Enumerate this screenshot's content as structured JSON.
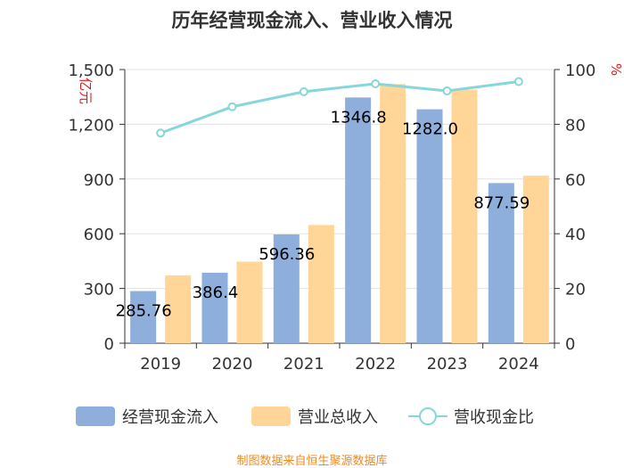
{
  "chart_data": {
    "type": "bar",
    "title": "历年经营现金流入、营业收入情况",
    "categories": [
      "2019",
      "2020",
      "2021",
      "2022",
      "2023",
      "2024"
    ],
    "series": [
      {
        "name": "经营现金流入",
        "axis": "left",
        "color": "#8eaedb",
        "values": [
          285.76,
          386.4,
          596.36,
          1346.8,
          1282.0,
          877.59
        ]
      },
      {
        "name": "营业总收入",
        "axis": "left",
        "color": "#ffd698",
        "values": [
          372,
          447,
          648,
          1420,
          1390,
          918
        ]
      },
      {
        "name": "营收现金比",
        "axis": "right",
        "type": "line",
        "color": "#87d6dc",
        "values": [
          76.8,
          86.4,
          91.9,
          94.8,
          92.2,
          95.6
        ]
      }
    ],
    "data_labels": [
      "285.76",
      "386.4",
      "596.36",
      "1346.8",
      "1282.0",
      "877.59"
    ],
    "ylim_left": [
      0,
      1500
    ],
    "ylim_right": [
      0,
      100
    ],
    "yticks_left": [
      "0",
      "300",
      "600",
      "900",
      "1,200",
      "1,500"
    ],
    "yticks_right": [
      "0",
      "20",
      "40",
      "60",
      "80",
      "100"
    ],
    "ylabel_left": "亿元",
    "ylabel_right": "%",
    "legend": [
      "经营现金流入",
      "营业总收入",
      "营收现金比"
    ],
    "source": "制图数据来自恒生聚源数据库"
  }
}
